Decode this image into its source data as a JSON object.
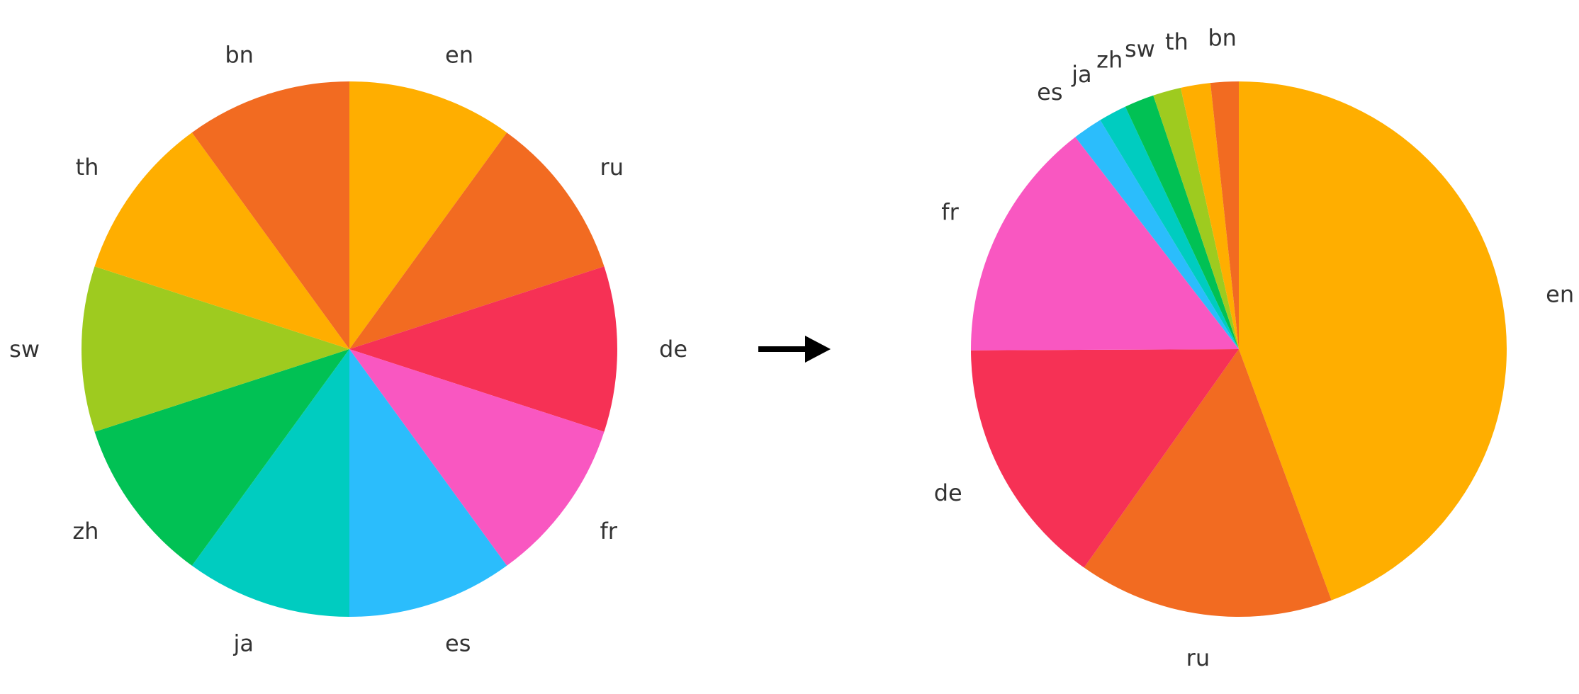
{
  "chart_data": [
    {
      "type": "pie",
      "start_angle_deg": 90,
      "direction": "clockwise",
      "labels": [
        "en",
        "ru",
        "de",
        "fr",
        "es",
        "ja",
        "zh",
        "sw",
        "th",
        "bn"
      ],
      "values": [
        10,
        10,
        10,
        10,
        10,
        10,
        10,
        10,
        10,
        10
      ],
      "colors": [
        "#FFAE00",
        "#F26B21",
        "#F63155",
        "#F957C1",
        "#2BBDFC",
        "#00CCC0",
        "#01C154",
        "#9ECB1F",
        "#FFAE00",
        "#F26B21"
      ]
    },
    {
      "type": "pie",
      "start_angle_deg": 90,
      "direction": "clockwise",
      "labels": [
        "en",
        "ru",
        "de",
        "fr",
        "es",
        "ja",
        "zh",
        "sw",
        "th",
        "bn"
      ],
      "values": [
        44.6,
        15.5,
        15.2,
        14.7,
        1.8,
        1.7,
        1.8,
        1.7,
        1.8,
        1.7
      ],
      "colors": [
        "#FFAE00",
        "#F26B21",
        "#F63155",
        "#F957C1",
        "#2BBDFC",
        "#00CCC0",
        "#01C154",
        "#9ECB1F",
        "#FFAE00",
        "#F26B21"
      ]
    }
  ],
  "arrow": {
    "icon": "right-arrow-icon",
    "color": "#000000"
  }
}
